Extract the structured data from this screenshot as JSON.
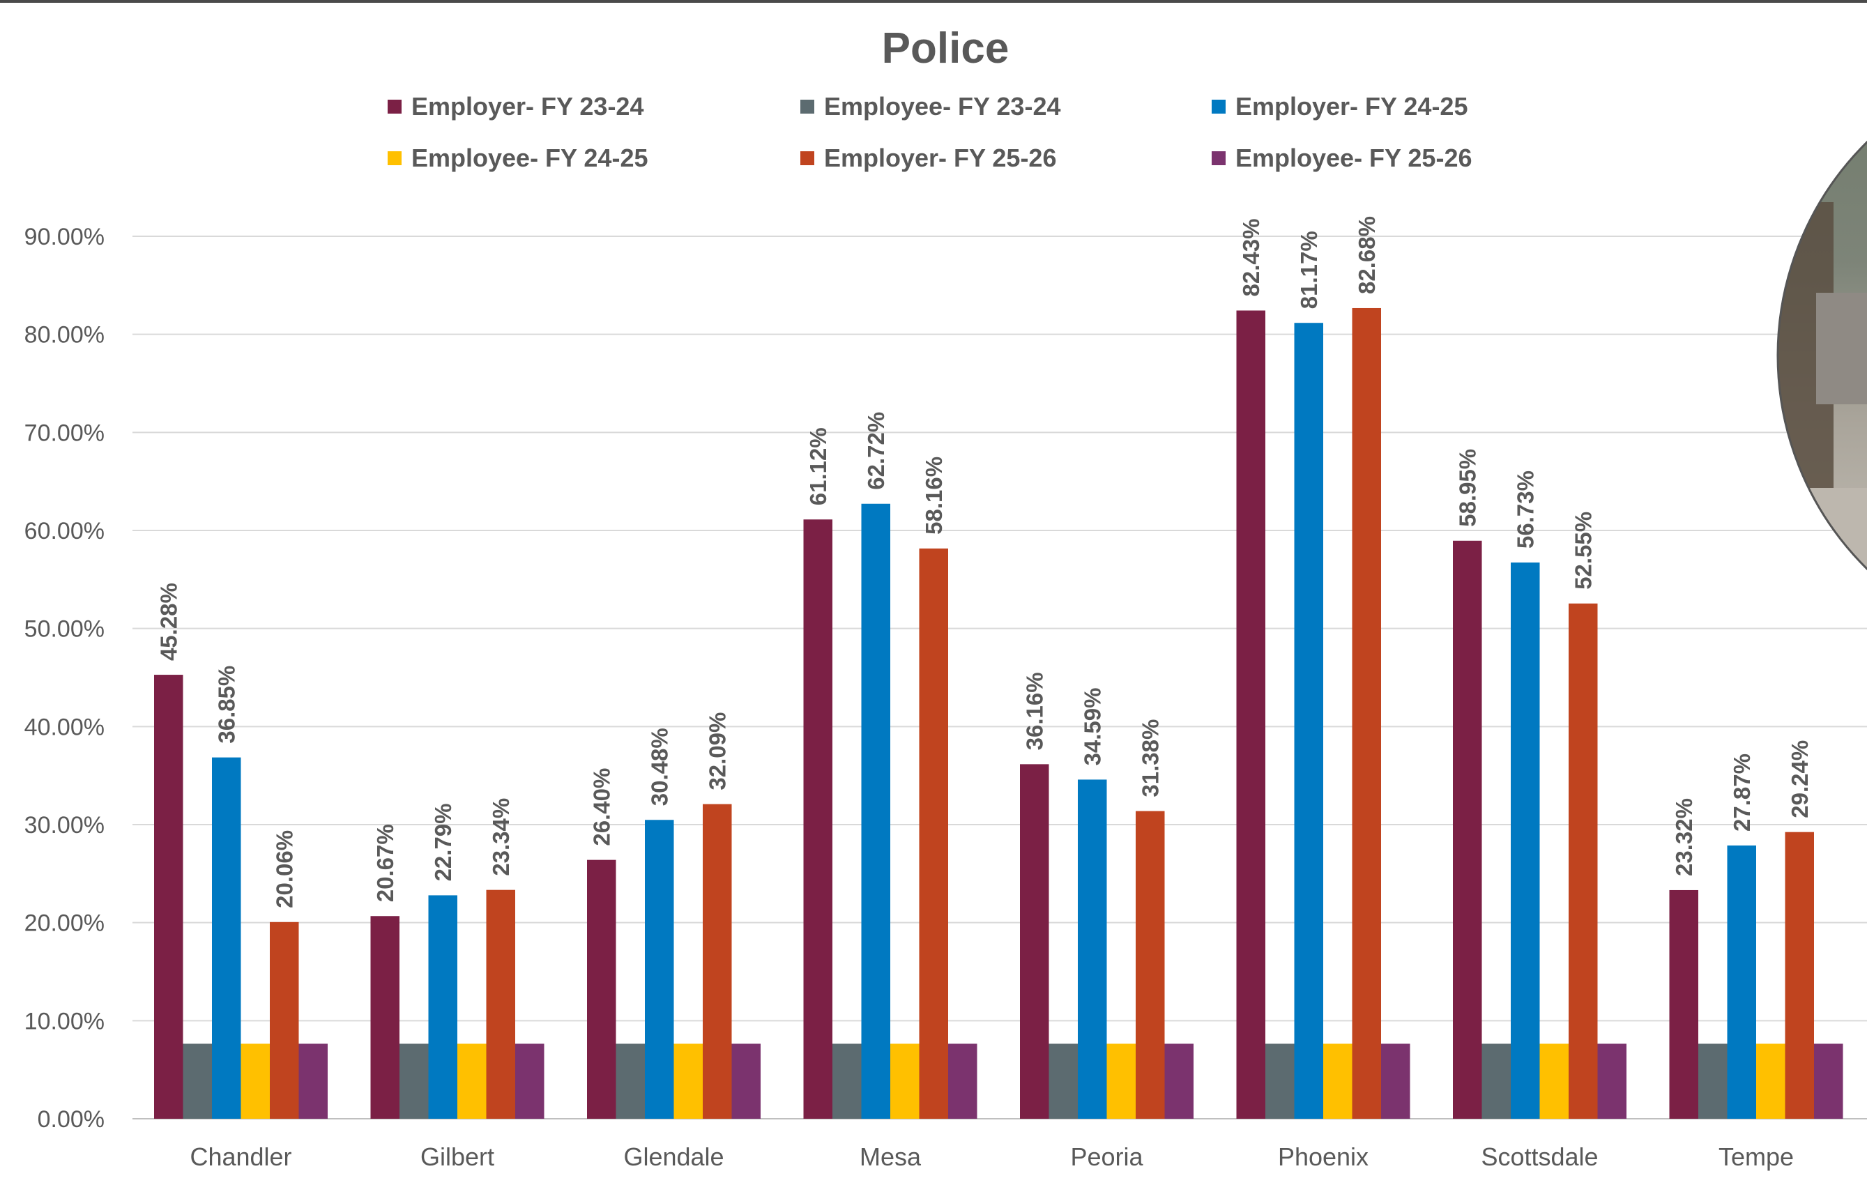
{
  "chart_data": {
    "type": "bar",
    "title": "Police",
    "xlabel": "",
    "ylabel": "",
    "ylim": [
      0,
      90
    ],
    "yticks": [
      "0.00%",
      "10.00%",
      "20.00%",
      "30.00%",
      "40.00%",
      "50.00%",
      "60.00%",
      "70.00%",
      "80.00%",
      "90.00%"
    ],
    "grid": true,
    "legend_position": "top",
    "categories": [
      "Chandler",
      "Gilbert",
      "Glendale",
      "Mesa",
      "Peoria",
      "Phoenix",
      "Scottsdale",
      "Tempe"
    ],
    "series": [
      {
        "name": "Employer- FY 23-24",
        "color": "#7b2045",
        "values": [
          45.28,
          20.67,
          26.4,
          61.12,
          36.16,
          82.43,
          58.95,
          23.32
        ],
        "labels": [
          "45.28%",
          "20.67%",
          "26.40%",
          "61.12%",
          "36.16%",
          "82.43%",
          "58.95%",
          "23.32%"
        ]
      },
      {
        "name": "Employee- FY 23-24",
        "color": "#5c6b70",
        "values": [
          7.65,
          7.65,
          7.65,
          7.65,
          7.65,
          7.65,
          7.65,
          7.65
        ],
        "labels": []
      },
      {
        "name": "Employer- FY 24-25",
        "color": "#0079c1",
        "values": [
          36.85,
          22.79,
          30.48,
          62.72,
          34.59,
          81.17,
          56.73,
          27.87
        ],
        "labels": [
          "36.85%",
          "22.79%",
          "30.48%",
          "62.72%",
          "34.59%",
          "81.17%",
          "56.73%",
          "27.87%"
        ]
      },
      {
        "name": "Employee- FY 24-25",
        "color": "#ffc000",
        "values": [
          7.65,
          7.65,
          7.65,
          7.65,
          7.65,
          7.65,
          7.65,
          7.65
        ],
        "labels": []
      },
      {
        "name": "Employer- FY 25-26",
        "color": "#c0441f",
        "values": [
          20.06,
          23.34,
          32.09,
          58.16,
          31.38,
          82.68,
          52.55,
          29.24
        ],
        "labels": [
          "20.06%",
          "23.34%",
          "32.09%",
          "58.16%",
          "31.38%",
          "82.68%",
          "52.55%",
          "29.24%"
        ]
      },
      {
        "name": "Employee- FY 25-26",
        "color": "#7b336e",
        "values": [
          7.65,
          7.65,
          7.65,
          7.65,
          7.65,
          7.65,
          7.65,
          7.65
        ],
        "labels": []
      }
    ]
  },
  "colors": {
    "axis_text": "#595959",
    "gridline": "#d9d9d9",
    "axis_line": "#bfbfbf"
  }
}
